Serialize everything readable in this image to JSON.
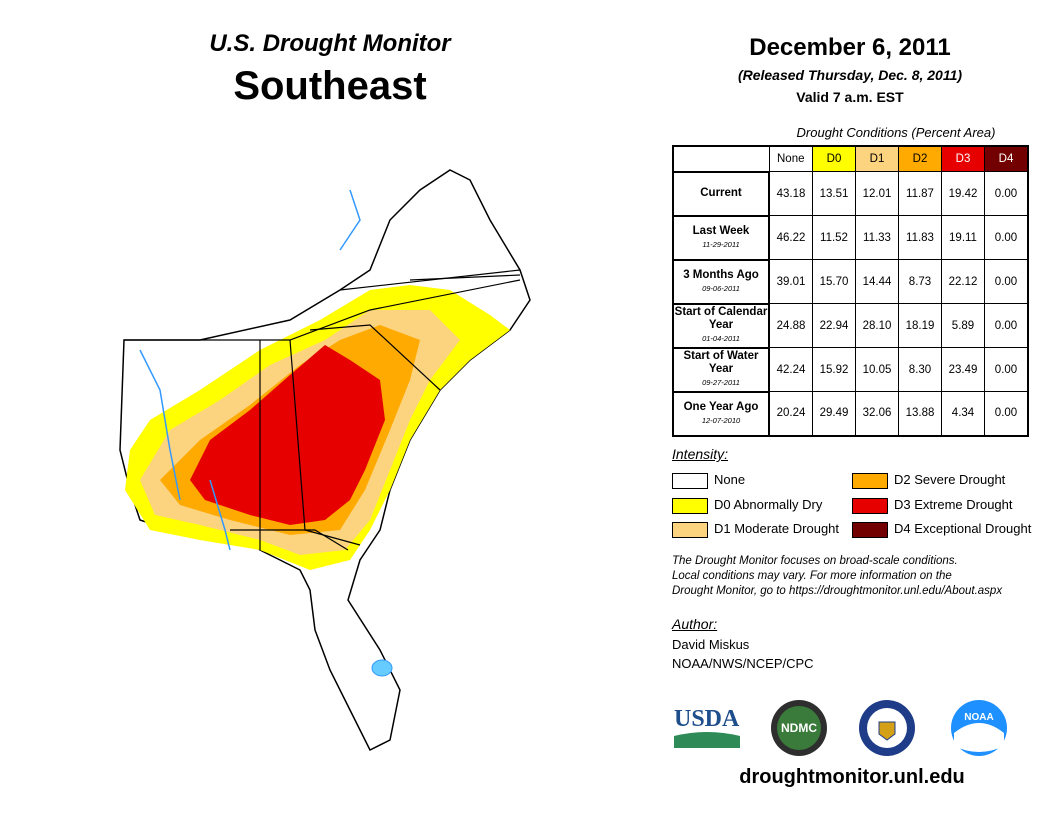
{
  "header": {
    "title": "U.S. Drought Monitor",
    "region": "Southeast",
    "date": "December 6, 2011",
    "released": "(Released Thursday, Dec. 8, 2011)",
    "valid": "Valid 7 a.m. EST"
  },
  "table": {
    "caption": "Drought Conditions (Percent Area)",
    "columns": [
      "None",
      "D0",
      "D1",
      "D2",
      "D3",
      "D4"
    ],
    "column_colors": [
      "#ffffff",
      "#ffff00",
      "#fcd37f",
      "#ffaa00",
      "#e60000",
      "#730000"
    ],
    "rows": [
      {
        "label": "Current",
        "sub": "",
        "values": [
          "43.18",
          "13.51",
          "12.01",
          "11.87",
          "19.42",
          "0.00"
        ]
      },
      {
        "label": "Last Week",
        "sub": "11-29-2011",
        "values": [
          "46.22",
          "11.52",
          "11.33",
          "11.83",
          "19.11",
          "0.00"
        ]
      },
      {
        "label": "3 Months Ago",
        "sub": "09-06-2011",
        "values": [
          "39.01",
          "15.70",
          "14.44",
          "8.73",
          "22.12",
          "0.00"
        ]
      },
      {
        "label": "Start of Calendar Year",
        "sub": "01-04-2011",
        "values": [
          "24.88",
          "22.94",
          "28.10",
          "18.19",
          "5.89",
          "0.00"
        ]
      },
      {
        "label": "Start of Water Year",
        "sub": "09-27-2011",
        "values": [
          "42.24",
          "15.92",
          "10.05",
          "8.30",
          "23.49",
          "0.00"
        ]
      },
      {
        "label": "One Year Ago",
        "sub": "12-07-2010",
        "values": [
          "20.24",
          "29.49",
          "32.06",
          "13.88",
          "4.34",
          "0.00"
        ]
      }
    ]
  },
  "legend": {
    "title": "Intensity:",
    "items": [
      {
        "label": "None",
        "color": "#ffffff"
      },
      {
        "label": "D0 Abnormally Dry",
        "color": "#ffff00"
      },
      {
        "label": "D1 Moderate Drought",
        "color": "#fcd37f"
      },
      {
        "label": "D2 Severe Drought",
        "color": "#ffaa00"
      },
      {
        "label": "D3 Extreme Drought",
        "color": "#e60000"
      },
      {
        "label": "D4 Exceptional Drought",
        "color": "#730000"
      }
    ]
  },
  "note": {
    "line1": "The Drought Monitor focuses on broad-scale conditions.",
    "line2": "Local conditions may vary. For more information on the",
    "line3": "Drought Monitor, go to https://droughtmonitor.unl.edu/About.aspx"
  },
  "author": {
    "title": "Author:",
    "name": "David Miskus",
    "org": "NOAA/NWS/NCEP/CPC"
  },
  "logos": {
    "usda": "USDA",
    "ndmc": "NDMC",
    "noaa": "NOAA"
  },
  "footer": {
    "url": "droughtmonitor.unl.edu"
  }
}
